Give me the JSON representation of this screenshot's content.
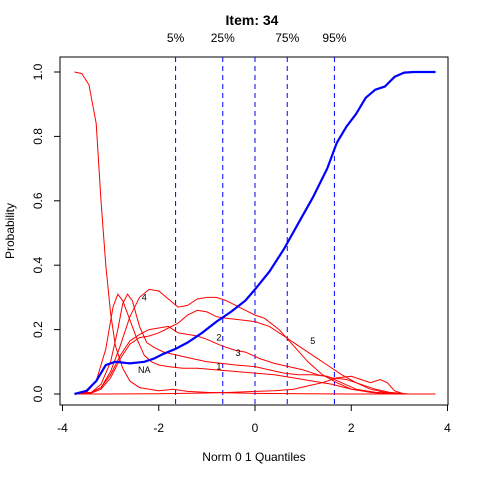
{
  "chart_data": {
    "type": "line",
    "title": "Item:  34",
    "xlabel": "Norm 0 1 Quantiles",
    "ylabel": "Probability",
    "xlim": [
      -4,
      4
    ],
    "ylim": [
      0,
      1
    ],
    "x_ticks": [
      -4,
      -2,
      0,
      2,
      4
    ],
    "y_ticks": [
      0.0,
      0.2,
      0.4,
      0.6,
      0.8,
      1.0
    ],
    "x_tick_labels": [
      "-4",
      "-2",
      "0",
      "2",
      "4"
    ],
    "y_tick_labels": [
      "0.0",
      "0.2",
      "0.4",
      "0.6",
      "0.8",
      "1.0"
    ],
    "quantile_lines": [
      {
        "label": "5%",
        "x": -1.65
      },
      {
        "label": "25%",
        "x": -0.67
      },
      {
        "label": "75%",
        "x": 0.67
      },
      {
        "label": "95%",
        "x": 1.65
      }
    ],
    "median_line": {
      "x": 0.0
    },
    "expected_score": {
      "color": "#0000ff",
      "points": [
        [
          -3.75,
          0.0
        ],
        [
          -3.5,
          0.01
        ],
        [
          -3.3,
          0.04
        ],
        [
          -3.1,
          0.09
        ],
        [
          -2.9,
          0.1
        ],
        [
          -2.6,
          0.095
        ],
        [
          -2.3,
          0.1
        ],
        [
          -2.1,
          0.11
        ],
        [
          -1.9,
          0.125
        ],
        [
          -1.65,
          0.14
        ],
        [
          -1.4,
          0.16
        ],
        [
          -1.1,
          0.19
        ],
        [
          -0.8,
          0.225
        ],
        [
          -0.5,
          0.255
        ],
        [
          -0.2,
          0.29
        ],
        [
          0.0,
          0.325
        ],
        [
          0.3,
          0.38
        ],
        [
          0.6,
          0.45
        ],
        [
          0.9,
          0.53
        ],
        [
          1.2,
          0.61
        ],
        [
          1.5,
          0.7
        ],
        [
          1.7,
          0.78
        ],
        [
          1.9,
          0.83
        ],
        [
          2.1,
          0.87
        ],
        [
          2.3,
          0.92
        ],
        [
          2.5,
          0.945
        ],
        [
          2.7,
          0.955
        ],
        [
          2.9,
          0.985
        ],
        [
          3.1,
          0.998
        ],
        [
          3.3,
          1.0
        ],
        [
          3.75,
          1.0
        ]
      ]
    },
    "series": [
      {
        "color": "#ff0000",
        "points": [
          [
            -3.75,
            1.0
          ],
          [
            -3.6,
            0.995
          ],
          [
            -3.45,
            0.96
          ],
          [
            -3.3,
            0.84
          ],
          [
            -3.2,
            0.6
          ],
          [
            -3.1,
            0.4
          ],
          [
            -3.0,
            0.25
          ],
          [
            -2.9,
            0.15
          ],
          [
            -2.75,
            0.08
          ],
          [
            -2.6,
            0.04
          ],
          [
            -2.4,
            0.02
          ],
          [
            -2.0,
            0.01
          ],
          [
            -1.7,
            0.015
          ],
          [
            -1.4,
            0.008
          ],
          [
            -1.0,
            0.005
          ],
          [
            0.0,
            0.002
          ],
          [
            1.0,
            0.001
          ],
          [
            2.0,
            0.0
          ],
          [
            3.75,
            0.0
          ]
        ]
      },
      {
        "color": "#ff0000",
        "label": "NA",
        "label_at": [
          -2.3,
          0.075
        ],
        "points": [
          [
            -3.75,
            0.0
          ],
          [
            -3.5,
            0.005
          ],
          [
            -3.3,
            0.04
          ],
          [
            -3.1,
            0.14
          ],
          [
            -2.95,
            0.27
          ],
          [
            -2.85,
            0.31
          ],
          [
            -2.75,
            0.29
          ],
          [
            -2.6,
            0.23
          ],
          [
            -2.45,
            0.17
          ],
          [
            -2.3,
            0.12
          ],
          [
            -2.15,
            0.1
          ],
          [
            -2.0,
            0.09
          ],
          [
            -1.8,
            0.085
          ],
          [
            -1.5,
            0.08
          ],
          [
            -1.2,
            0.08
          ],
          [
            -0.8,
            0.075
          ],
          [
            -0.4,
            0.07
          ],
          [
            0.0,
            0.065
          ],
          [
            0.4,
            0.06
          ],
          [
            0.8,
            0.05
          ],
          [
            1.2,
            0.04
          ],
          [
            1.6,
            0.03
          ],
          [
            2.0,
            0.015
          ],
          [
            2.5,
            0.005
          ],
          [
            3.0,
            0.0
          ],
          [
            3.75,
            0.0
          ]
        ]
      },
      {
        "color": "#ff0000",
        "label": "1",
        "label_at": [
          -0.75,
          0.085
        ],
        "points": [
          [
            -3.75,
            0.0
          ],
          [
            -3.4,
            0.005
          ],
          [
            -3.2,
            0.03
          ],
          [
            -3.0,
            0.1
          ],
          [
            -2.85,
            0.2
          ],
          [
            -2.75,
            0.28
          ],
          [
            -2.65,
            0.31
          ],
          [
            -2.55,
            0.29
          ],
          [
            -2.4,
            0.21
          ],
          [
            -2.25,
            0.16
          ],
          [
            -2.1,
            0.145
          ],
          [
            -1.9,
            0.13
          ],
          [
            -1.6,
            0.12
          ],
          [
            -1.3,
            0.11
          ],
          [
            -1.0,
            0.1
          ],
          [
            -0.7,
            0.095
          ],
          [
            -0.4,
            0.09
          ],
          [
            0.0,
            0.085
          ],
          [
            0.3,
            0.075
          ],
          [
            0.6,
            0.065
          ],
          [
            0.9,
            0.06
          ],
          [
            1.2,
            0.06
          ],
          [
            1.5,
            0.055
          ],
          [
            1.8,
            0.035
          ],
          [
            2.1,
            0.015
          ],
          [
            2.5,
            0.005
          ],
          [
            3.0,
            0.0
          ],
          [
            3.75,
            0.0
          ]
        ]
      },
      {
        "color": "#ff0000",
        "label": "2",
        "label_at": [
          -0.75,
          0.175
        ],
        "points": [
          [
            -3.75,
            0.0
          ],
          [
            -3.4,
            0.005
          ],
          [
            -3.2,
            0.02
          ],
          [
            -3.0,
            0.06
          ],
          [
            -2.8,
            0.12
          ],
          [
            -2.6,
            0.165
          ],
          [
            -2.4,
            0.185
          ],
          [
            -2.2,
            0.2
          ],
          [
            -2.0,
            0.205
          ],
          [
            -1.8,
            0.21
          ],
          [
            -1.6,
            0.19
          ],
          [
            -1.4,
            0.185
          ],
          [
            -1.2,
            0.18
          ],
          [
            -1.0,
            0.17
          ],
          [
            -0.7,
            0.15
          ],
          [
            -0.4,
            0.135
          ],
          [
            -0.2,
            0.13
          ],
          [
            0.1,
            0.11
          ],
          [
            0.4,
            0.095
          ],
          [
            0.7,
            0.085
          ],
          [
            1.0,
            0.075
          ],
          [
            1.3,
            0.06
          ],
          [
            1.6,
            0.05
          ],
          [
            1.9,
            0.045
          ],
          [
            2.2,
            0.03
          ],
          [
            2.5,
            0.015
          ],
          [
            2.8,
            0.005
          ],
          [
            3.2,
            0.0
          ],
          [
            3.75,
            0.0
          ]
        ]
      },
      {
        "color": "#ff0000",
        "label": "3",
        "label_at": [
          -0.35,
          0.128
        ],
        "points": [
          [
            -3.75,
            0.0
          ],
          [
            -3.4,
            0.003
          ],
          [
            -3.2,
            0.015
          ],
          [
            -3.0,
            0.05
          ],
          [
            -2.8,
            0.11
          ],
          [
            -2.6,
            0.155
          ],
          [
            -2.4,
            0.175
          ],
          [
            -2.2,
            0.18
          ],
          [
            -2.0,
            0.19
          ],
          [
            -1.8,
            0.205
          ],
          [
            -1.6,
            0.22
          ],
          [
            -1.4,
            0.245
          ],
          [
            -1.2,
            0.26
          ],
          [
            -1.0,
            0.255
          ],
          [
            -0.8,
            0.24
          ],
          [
            -0.6,
            0.235
          ],
          [
            -0.3,
            0.23
          ],
          [
            0.0,
            0.225
          ],
          [
            0.3,
            0.21
          ],
          [
            0.6,
            0.18
          ],
          [
            0.9,
            0.15
          ],
          [
            1.2,
            0.12
          ],
          [
            1.5,
            0.09
          ],
          [
            1.8,
            0.06
          ],
          [
            2.1,
            0.035
          ],
          [
            2.4,
            0.015
          ],
          [
            2.7,
            0.005
          ],
          [
            3.0,
            0.0
          ],
          [
            3.75,
            0.0
          ]
        ]
      },
      {
        "color": "#ff0000",
        "label": "4",
        "label_at": [
          -2.3,
          0.3
        ],
        "points": [
          [
            -3.75,
            0.0
          ],
          [
            -3.4,
            0.005
          ],
          [
            -3.2,
            0.02
          ],
          [
            -3.0,
            0.07
          ],
          [
            -2.8,
            0.15
          ],
          [
            -2.6,
            0.24
          ],
          [
            -2.4,
            0.3
          ],
          [
            -2.2,
            0.325
          ],
          [
            -2.0,
            0.32
          ],
          [
            -1.8,
            0.295
          ],
          [
            -1.6,
            0.27
          ],
          [
            -1.4,
            0.275
          ],
          [
            -1.2,
            0.295
          ],
          [
            -1.0,
            0.3
          ],
          [
            -0.8,
            0.3
          ],
          [
            -0.6,
            0.29
          ],
          [
            -0.4,
            0.275
          ],
          [
            -0.2,
            0.26
          ],
          [
            0.0,
            0.245
          ],
          [
            0.2,
            0.235
          ],
          [
            0.5,
            0.2
          ],
          [
            0.8,
            0.15
          ],
          [
            1.1,
            0.1
          ],
          [
            1.4,
            0.06
          ],
          [
            1.7,
            0.035
          ],
          [
            2.0,
            0.015
          ],
          [
            2.4,
            0.005
          ],
          [
            2.8,
            0.0
          ],
          [
            3.75,
            0.0
          ]
        ]
      },
      {
        "color": "#ff0000",
        "label": "5",
        "label_at": [
          1.2,
          0.165
        ],
        "points": [
          [
            -3.75,
            0.0
          ],
          [
            -3.0,
            0.0
          ],
          [
            -2.0,
            0.001
          ],
          [
            -1.0,
            0.003
          ],
          [
            -0.5,
            0.005
          ],
          [
            0.0,
            0.008
          ],
          [
            0.4,
            0.01
          ],
          [
            0.8,
            0.015
          ],
          [
            1.1,
            0.025
          ],
          [
            1.4,
            0.035
          ],
          [
            1.7,
            0.05
          ],
          [
            2.0,
            0.055
          ],
          [
            2.2,
            0.045
          ],
          [
            2.4,
            0.035
          ],
          [
            2.6,
            0.045
          ],
          [
            2.75,
            0.035
          ],
          [
            2.9,
            0.01
          ],
          [
            3.1,
            0.0
          ],
          [
            3.75,
            0.0
          ]
        ]
      }
    ]
  }
}
